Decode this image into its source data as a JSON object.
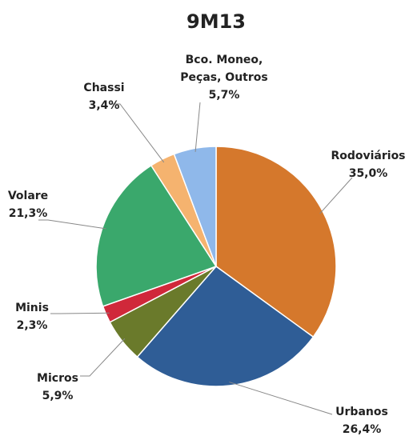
{
  "chart_data": {
    "type": "pie",
    "title": "9M13",
    "categories": [
      "Rodoviários",
      "Urbanos",
      "Micros",
      "Minis",
      "Volare",
      "Chassi",
      "Bco. Moneo, Peças, Outros"
    ],
    "values": [
      35.0,
      26.4,
      5.9,
      2.3,
      21.3,
      3.4,
      5.7
    ],
    "value_labels": [
      "35,0%",
      "26,4%",
      "5,9%",
      "2,3%",
      "21,3%",
      "3,4%",
      "5,7%"
    ],
    "colors": [
      "#d5782c",
      "#2f5d96",
      "#6a7a2b",
      "#d0283a",
      "#3aa86c",
      "#f5b36f",
      "#8fb8ea"
    ]
  }
}
